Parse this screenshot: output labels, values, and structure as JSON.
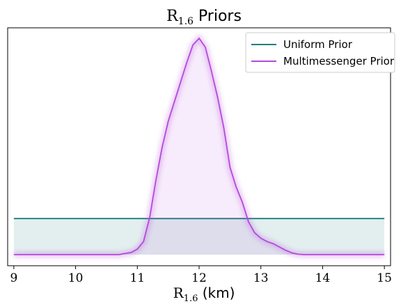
{
  "chart_data": {
    "type": "line",
    "title": {
      "symbol": "R",
      "subscript": "1.6",
      "text": " Priors"
    },
    "xlabel": {
      "symbol": "R",
      "subscript": "1.6",
      "text": " (km)"
    },
    "ylabel": "",
    "xlim": [
      8.9,
      15.1
    ],
    "ylim": [
      0,
      1.0
    ],
    "xticks": [
      "9",
      "10",
      "11",
      "12",
      "13",
      "14",
      "15"
    ],
    "legend": {
      "placement": "top-right"
    },
    "grid": false,
    "colors": {
      "uniform": "#1a7f7d",
      "multimessenger": "#b548dc"
    },
    "series": [
      {
        "name": "Uniform Prior",
        "x": [
          9.0,
          15.0
        ],
        "y": [
          0.165,
          0.165
        ]
      },
      {
        "name": "Multimessenger Prior",
        "x": [
          9.0,
          10.7,
          10.9,
          11.0,
          11.1,
          11.2,
          11.3,
          11.4,
          11.5,
          11.6,
          11.7,
          11.8,
          11.9,
          12.0,
          12.1,
          12.2,
          12.3,
          12.4,
          12.5,
          12.6,
          12.7,
          12.8,
          12.9,
          13.0,
          13.1,
          13.2,
          13.3,
          13.4,
          13.5,
          13.6,
          13.7,
          15.0
        ],
        "y": [
          0.0,
          0.0,
          0.01,
          0.025,
          0.06,
          0.17,
          0.34,
          0.49,
          0.61,
          0.7,
          0.79,
          0.88,
          0.96,
          0.99,
          0.95,
          0.84,
          0.72,
          0.58,
          0.4,
          0.31,
          0.24,
          0.15,
          0.1,
          0.075,
          0.06,
          0.05,
          0.035,
          0.02,
          0.008,
          0.002,
          0.0,
          0.0
        ]
      }
    ]
  }
}
